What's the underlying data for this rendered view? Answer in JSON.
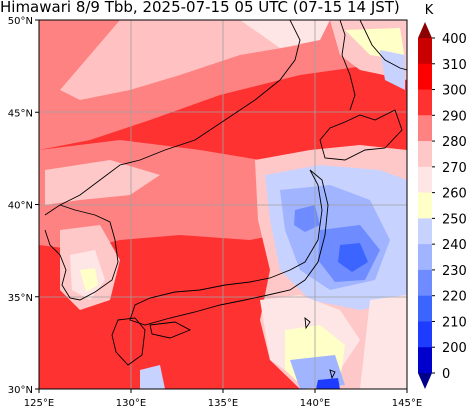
{
  "title": "Himawari 8/9 Tbb, 2025-07-15 05 UTC (07-15 14 JST)",
  "map": {
    "lat_labels": [
      "50°N",
      "45°N",
      "40°N",
      "35°N",
      "30°N"
    ],
    "lon_labels": [
      "125°E",
      "130°E",
      "135°E",
      "140°E",
      "145°E"
    ],
    "lat_values": [
      50,
      45,
      40,
      35,
      30
    ],
    "lon_values": [
      125,
      130,
      135,
      140,
      145
    ],
    "extent": {
      "lon_min": 125,
      "lon_max": 145,
      "lat_min": 30,
      "lat_max": 50
    },
    "gridlines": true
  },
  "colorbar": {
    "unit": "K",
    "tick_labels": [
      "0",
      "200",
      "210",
      "220",
      "230",
      "240",
      "250",
      "260",
      "270",
      "280",
      "290",
      "300",
      "310",
      "400"
    ],
    "colors": [
      "#00008b",
      "#0000cd",
      "#1e3cff",
      "#3c64ff",
      "#6e8cff",
      "#a0b4ff",
      "#c8d2ff",
      "#ffffc8",
      "#ffe6e6",
      "#ffc8c8",
      "#ff8282",
      "#ff3232",
      "#ff0000",
      "#c80000",
      "#8b0000"
    ],
    "extend": "both"
  },
  "colors": {
    "warm_background": "#ff3232",
    "land_coast": "#000000",
    "grid": "#a0a0a0"
  }
}
